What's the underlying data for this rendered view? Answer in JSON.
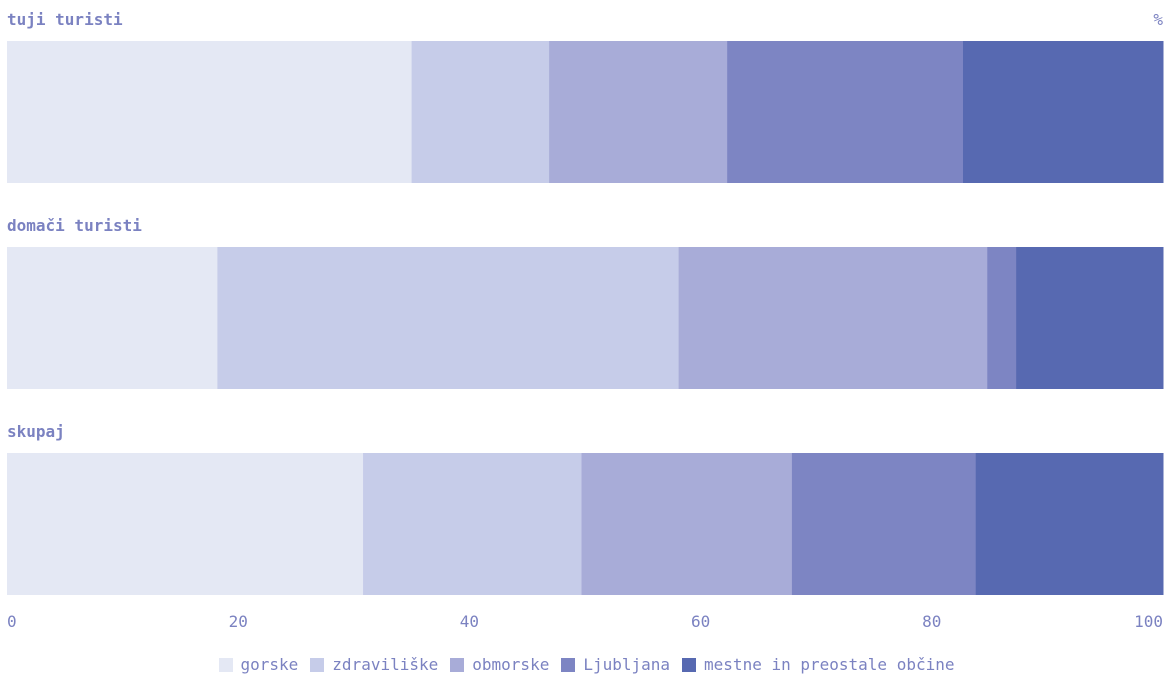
{
  "chart_data": {
    "type": "bar",
    "orientation": "horizontal",
    "stacked": true,
    "unit_label": "%",
    "categories": [
      "tuji turisti",
      "domači turisti",
      "skupaj"
    ],
    "series": [
      {
        "name": "gorske",
        "values": [
          35.0,
          18.2,
          30.8
        ],
        "color": "#e4e8f4"
      },
      {
        "name": "zdraviliške",
        "values": [
          11.9,
          39.9,
          18.9
        ],
        "color": "#c6cce9"
      },
      {
        "name": "obmorske",
        "values": [
          15.4,
          26.7,
          18.2
        ],
        "color": "#a8acd8"
      },
      {
        "name": "Ljubljana",
        "values": [
          20.4,
          2.5,
          15.9
        ],
        "color": "#7d85c3"
      },
      {
        "name": "mestne in preostale občine",
        "values": [
          17.3,
          12.7,
          16.2
        ],
        "color": "#5769b1"
      }
    ],
    "xlim": [
      0,
      100
    ],
    "xticks": [
      "0",
      "20",
      "40",
      "60",
      "80",
      "100"
    ],
    "legend_position": "bottom"
  }
}
